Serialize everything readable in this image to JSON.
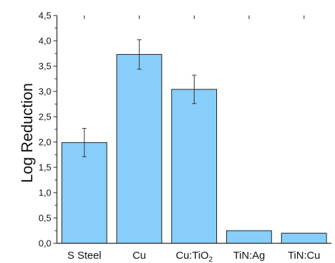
{
  "chart_data": {
    "type": "bar",
    "ylabel": "Log Reduction",
    "xlabel": "",
    "ylim": [
      0,
      4.5
    ],
    "yticks": [
      "0,0",
      "0,5",
      "1,0",
      "1,5",
      "2,0",
      "2,5",
      "3,0",
      "3,5",
      "4,0",
      "4,5"
    ],
    "categories": [
      {
        "label": "S Steel"
      },
      {
        "label": "Cu"
      },
      {
        "label": "Cu:TiO",
        "sub": "2"
      },
      {
        "label": "TiN:Ag"
      },
      {
        "label": "TiN:Cu"
      }
    ],
    "values": [
      1.99,
      3.73,
      3.04,
      0.25,
      0.2
    ],
    "errors": [
      0.28,
      0.29,
      0.28,
      null,
      null
    ],
    "bar_color": "#87CEFA",
    "grid": false
  }
}
